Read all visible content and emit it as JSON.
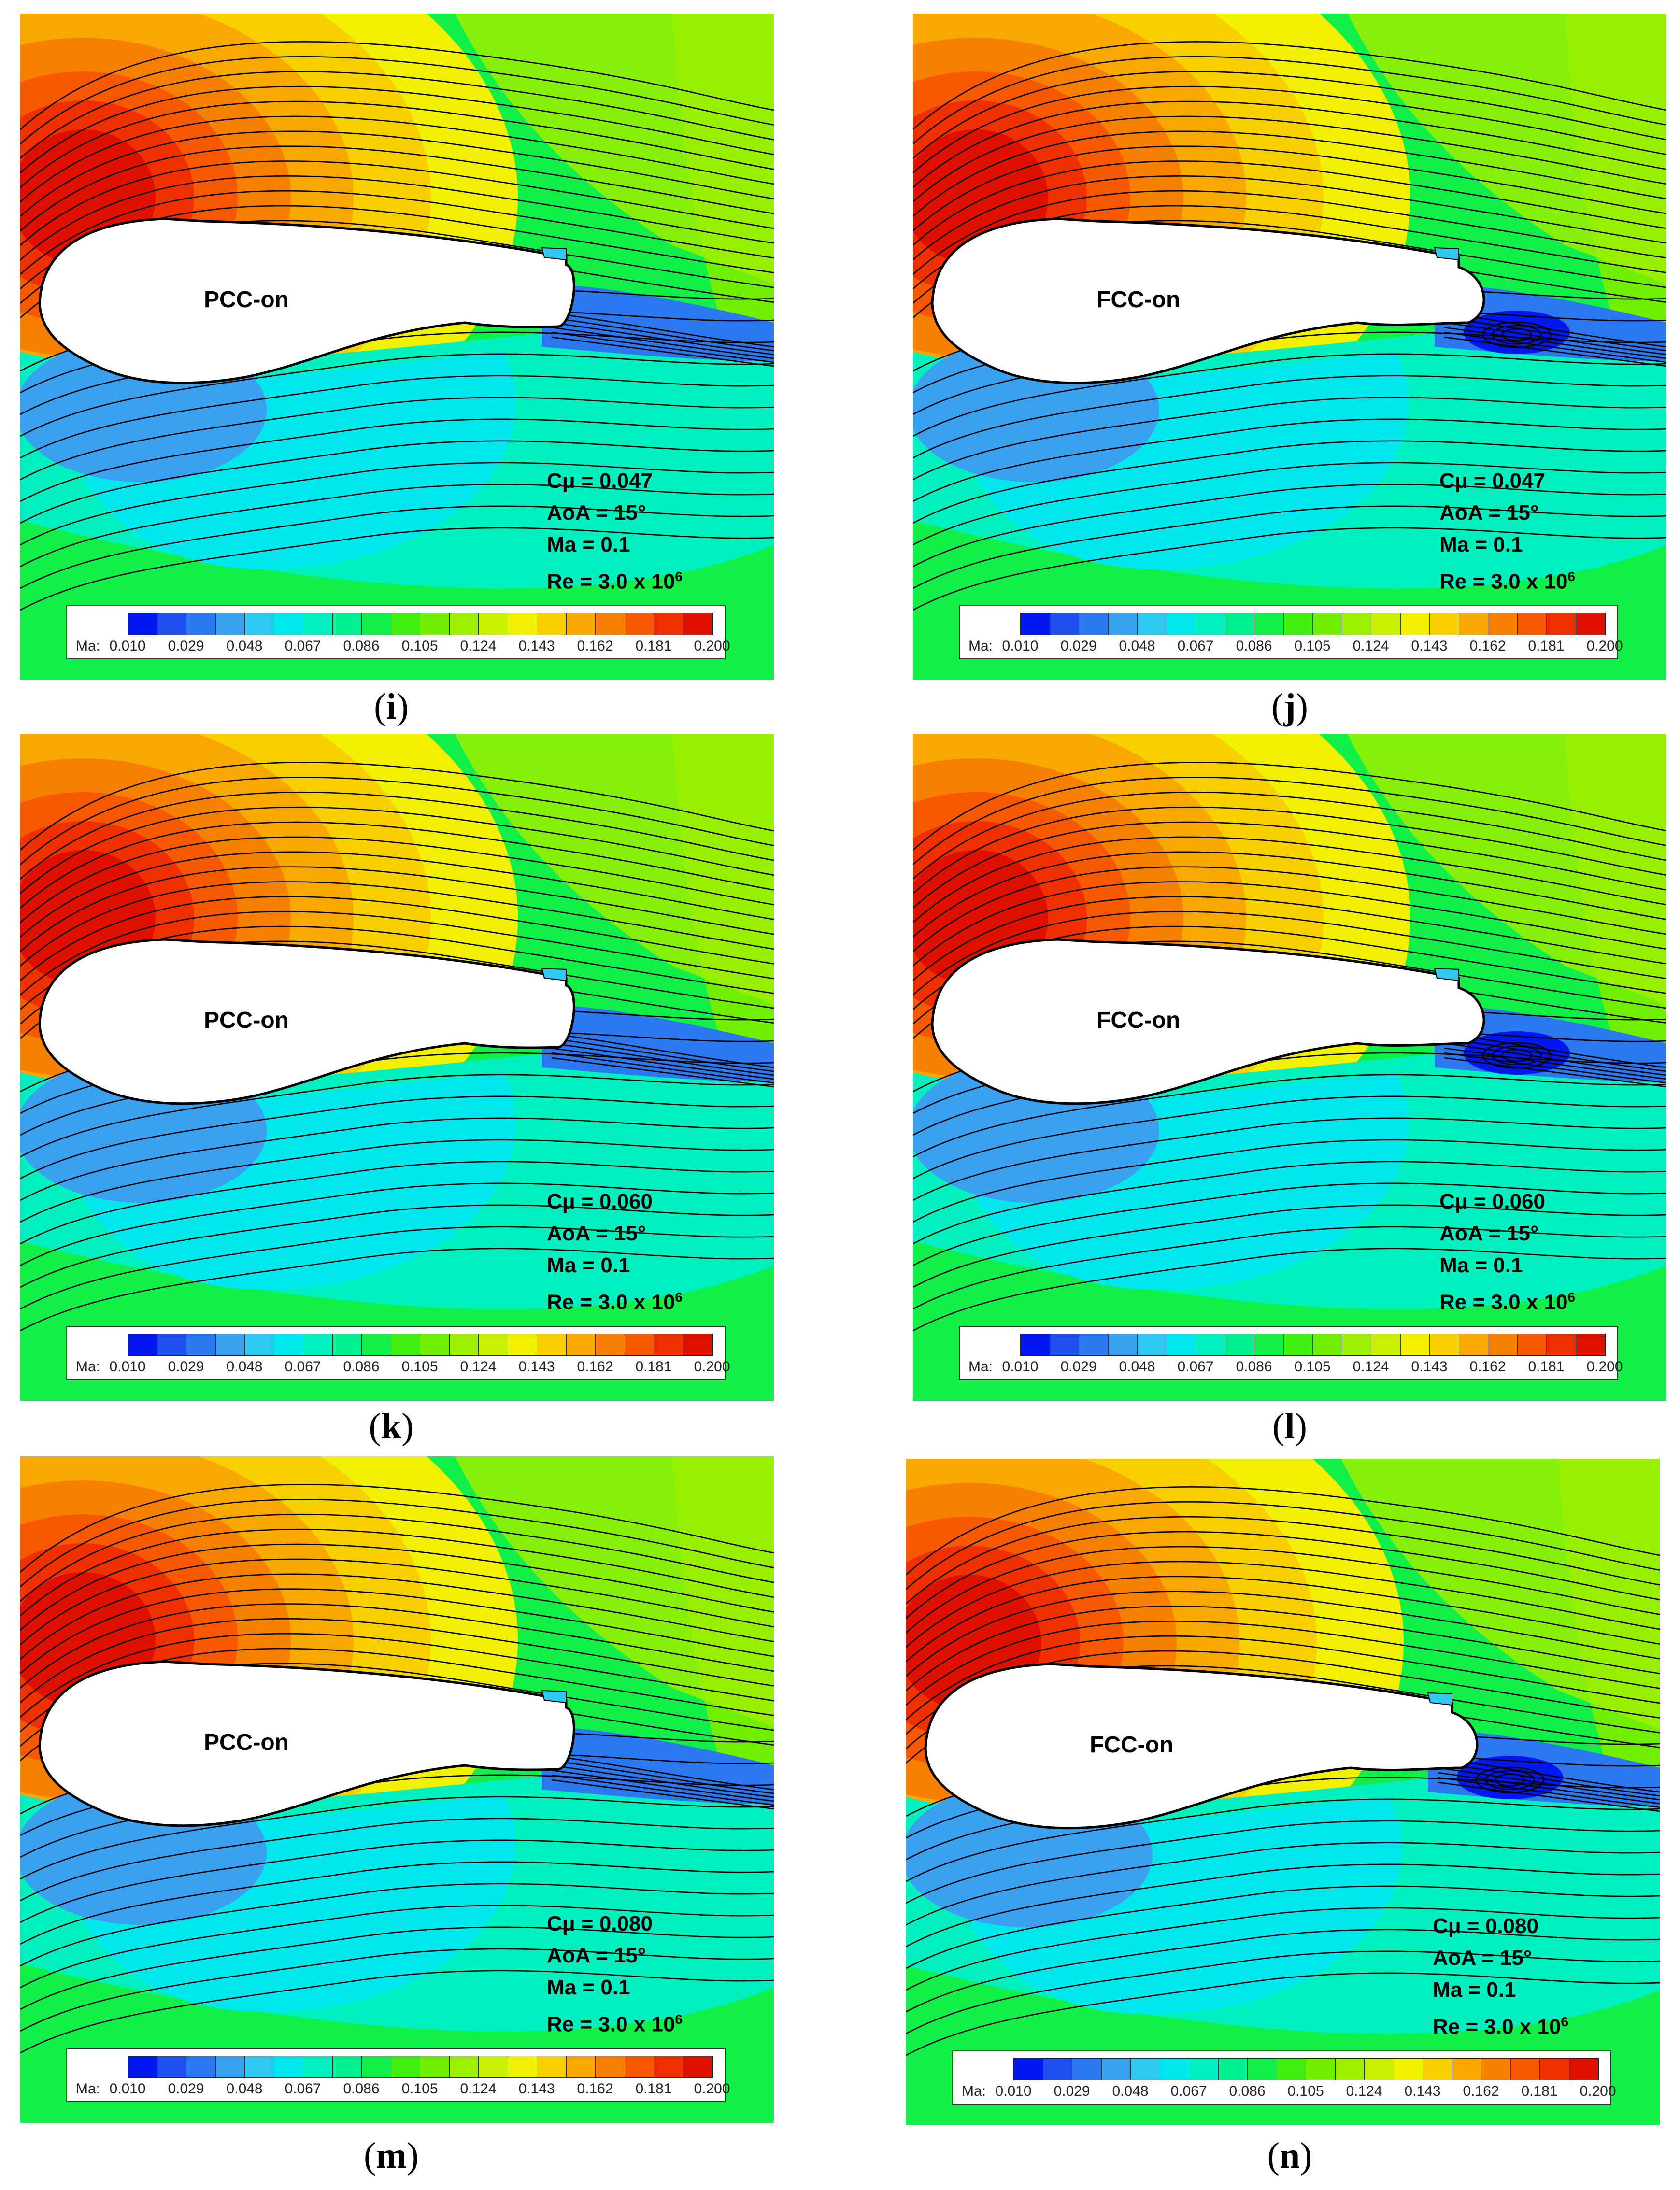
{
  "legend": {
    "label": "Ma:",
    "ticks": [
      "0.010",
      "0.029",
      "0.048",
      "0.067",
      "0.086",
      "0.105",
      "0.124",
      "0.143",
      "0.162",
      "0.181",
      "0.200"
    ],
    "colors": [
      "#0018f0",
      "#1e50f0",
      "#2c78f0",
      "#3aa0f0",
      "#2fc8f0",
      "#00e8ee",
      "#00f0c0",
      "#00f090",
      "#10f048",
      "#40f010",
      "#70f000",
      "#9cf000",
      "#c8f000",
      "#f0f000",
      "#f8d000",
      "#f8a800",
      "#f88000",
      "#f85800",
      "#f03000",
      "#e01000"
    ]
  },
  "panels": [
    {
      "tag": "i",
      "config": "PCC-on",
      "cmu": "Cμ = 0.047",
      "aoa": "AoA = 15°",
      "ma": "Ma = 0.1",
      "re_base": "Re = 3.0 x 10",
      "re_exp": "6"
    },
    {
      "tag": "j",
      "config": "FCC-on",
      "cmu": "Cμ = 0.047",
      "aoa": "AoA = 15°",
      "ma": "Ma = 0.1",
      "re_base": "Re = 3.0 x 10",
      "re_exp": "6"
    },
    {
      "tag": "k",
      "config": "PCC-on",
      "cmu": "Cμ = 0.060",
      "aoa": "AoA = 15°",
      "ma": "Ma = 0.1",
      "re_base": "Re = 3.0 x 10",
      "re_exp": "6"
    },
    {
      "tag": "l",
      "config": "FCC-on",
      "cmu": "Cμ = 0.060",
      "aoa": "AoA = 15°",
      "ma": "Ma = 0.1",
      "re_base": "Re = 3.0 x 10",
      "re_exp": "6"
    },
    {
      "tag": "m",
      "config": "PCC-on",
      "cmu": "Cμ = 0.080",
      "aoa": "AoA = 15°",
      "ma": "Ma = 0.1",
      "re_base": "Re = 3.0 x 10",
      "re_exp": "6"
    },
    {
      "tag": "n",
      "config": "FCC-on",
      "cmu": "Cμ = 0.080",
      "aoa": "AoA = 15°",
      "ma": "Ma = 0.1",
      "re_base": "Re = 3.0 x 10",
      "re_exp": "6"
    }
  ]
}
